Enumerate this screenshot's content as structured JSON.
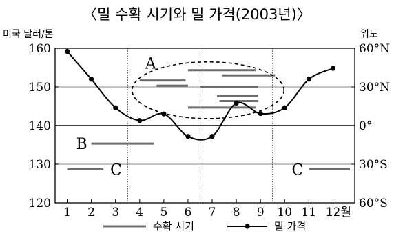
{
  "chart_data": {
    "type": "line",
    "title": "〈밀 수확 시기와 밀 가격(2003년)〉",
    "left_axis_label": "미국 달러/톤",
    "right_axis_label": "위도",
    "x_tick_labels": [
      "1",
      "2",
      "3",
      "4",
      "5",
      "6",
      "7",
      "8",
      "9",
      "10",
      "11",
      "12월"
    ],
    "left_ticks": [
      "160",
      "150",
      "140",
      "130",
      "120"
    ],
    "left_range": [
      120,
      160
    ],
    "right_ticks": [
      "60°N",
      "30°N",
      "0°",
      "30°S",
      "60°S"
    ],
    "price_series": {
      "name": "밀 가격",
      "x": [
        1,
        2,
        3,
        4,
        5,
        6,
        7,
        8,
        9,
        10,
        11,
        12
      ],
      "y": [
        159.2,
        152.0,
        144.6,
        141.3,
        143.0,
        137.2,
        137.2,
        145.8,
        143.1,
        144.6,
        152.0,
        154.8
      ]
    },
    "harvest_bars": [
      {
        "group": "A",
        "start": 4.0,
        "end": 5.9,
        "lat": 35
      },
      {
        "group": "A",
        "start": 4.7,
        "end": 6.0,
        "lat": 31
      },
      {
        "group": "A",
        "start": 6.0,
        "end": 8.8,
        "lat": 43
      },
      {
        "group": "A",
        "start": 7.4,
        "end": 9.6,
        "lat": 39
      },
      {
        "group": "A",
        "start": 6.5,
        "end": 8.9,
        "lat": 30
      },
      {
        "group": "A",
        "start": 7.2,
        "end": 8.9,
        "lat": 23
      },
      {
        "group": "A",
        "start": 7.3,
        "end": 8.9,
        "lat": 19
      },
      {
        "group": "A",
        "start": 6.0,
        "end": 8.8,
        "lat": 14
      },
      {
        "group": "B",
        "start": 2.0,
        "end": 4.6,
        "lat": -14
      },
      {
        "group": "C",
        "start": 1.0,
        "end": 2.5,
        "lat": -34
      },
      {
        "group": "C",
        "start": 11.0,
        "end": 12.7,
        "lat": -34
      }
    ],
    "region_labels": [
      "A",
      "B",
      "C",
      "C"
    ],
    "legend": [
      "수확 시기",
      "밀 가격"
    ]
  }
}
